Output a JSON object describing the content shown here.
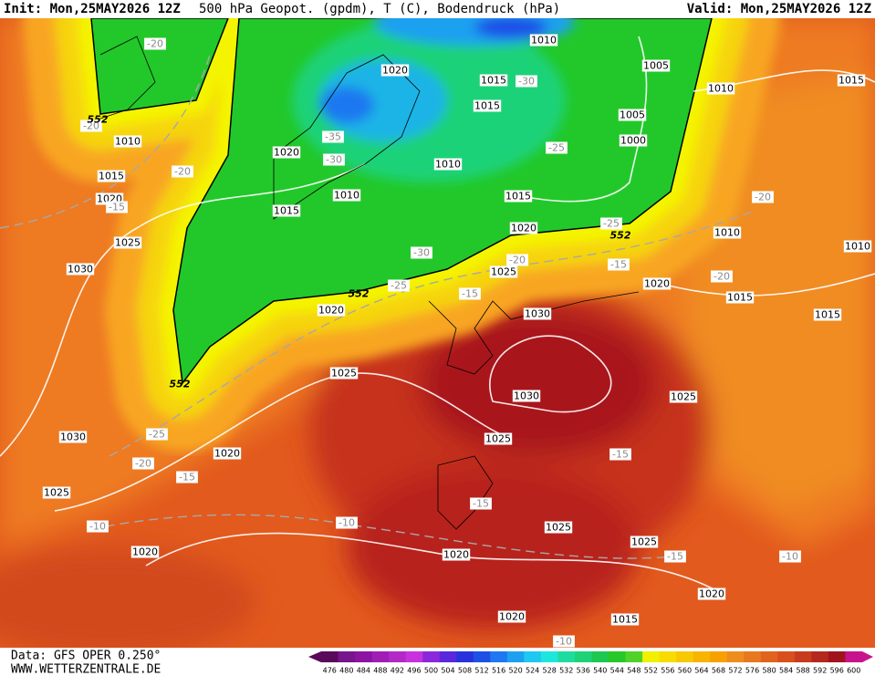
{
  "header": {
    "init": "Init: Mon,25MAY2026 12Z",
    "title": "500 hPa Geopot. (gpdm), T (C), Bodendruck (hPa)",
    "valid": "Valid: Mon,25MAY2026 12Z"
  },
  "map": {
    "pressure_labels": [
      1010,
      1020,
      1015,
      1015,
      1005,
      1010,
      1015,
      1005,
      1000,
      1010,
      1015,
      1020,
      1020,
      1010,
      1010,
      1015,
      1015,
      1020,
      1025,
      1010,
      1010,
      1030,
      1025,
      1020,
      1015,
      1020,
      1030,
      1015,
      1025,
      1030,
      1025,
      1030,
      1025,
      1020,
      1025,
      1025,
      1025,
      1020,
      1020,
      1020,
      1020,
      1015
    ],
    "temperature_labels": [
      -20,
      -20,
      -30,
      -35,
      -30,
      -25,
      -20,
      -15,
      -20,
      -25,
      -30,
      -20,
      -15,
      -20,
      -25,
      -15,
      -25,
      -20,
      -15,
      -15,
      -15,
      -10,
      -10,
      -15,
      -10,
      -10
    ],
    "geopotential_labels": [
      552,
      552,
      552,
      552
    ]
  },
  "footer": {
    "data": "Data: GFS OPER 0.250°",
    "site": "WWW.WETTERZENTRALE.DE"
  },
  "colorbar": {
    "ticks": [
      476,
      480,
      484,
      488,
      492,
      496,
      500,
      504,
      508,
      512,
      516,
      520,
      524,
      528,
      532,
      536,
      540,
      544,
      548,
      552,
      556,
      560,
      564,
      568,
      572,
      576,
      580,
      584,
      588,
      592,
      596,
      600
    ],
    "colors": [
      "#5a0a5a",
      "#78148c",
      "#8c14a0",
      "#a01eb4",
      "#b428c8",
      "#c832dc",
      "#8c28dc",
      "#5a28dc",
      "#2832dc",
      "#1e50e6",
      "#1e78f0",
      "#1ea0f0",
      "#1ec8f0",
      "#1ee6dc",
      "#1edca0",
      "#1ed278",
      "#1ec850",
      "#28c828",
      "#50d228",
      "#f0f000",
      "#f8dc00",
      "#f8c800",
      "#f8b400",
      "#f8a000",
      "#f08c1e",
      "#e8781e",
      "#e0641e",
      "#d8501e",
      "#c83c1e",
      "#b4281e",
      "#a0141e",
      "#c8148c"
    ]
  }
}
